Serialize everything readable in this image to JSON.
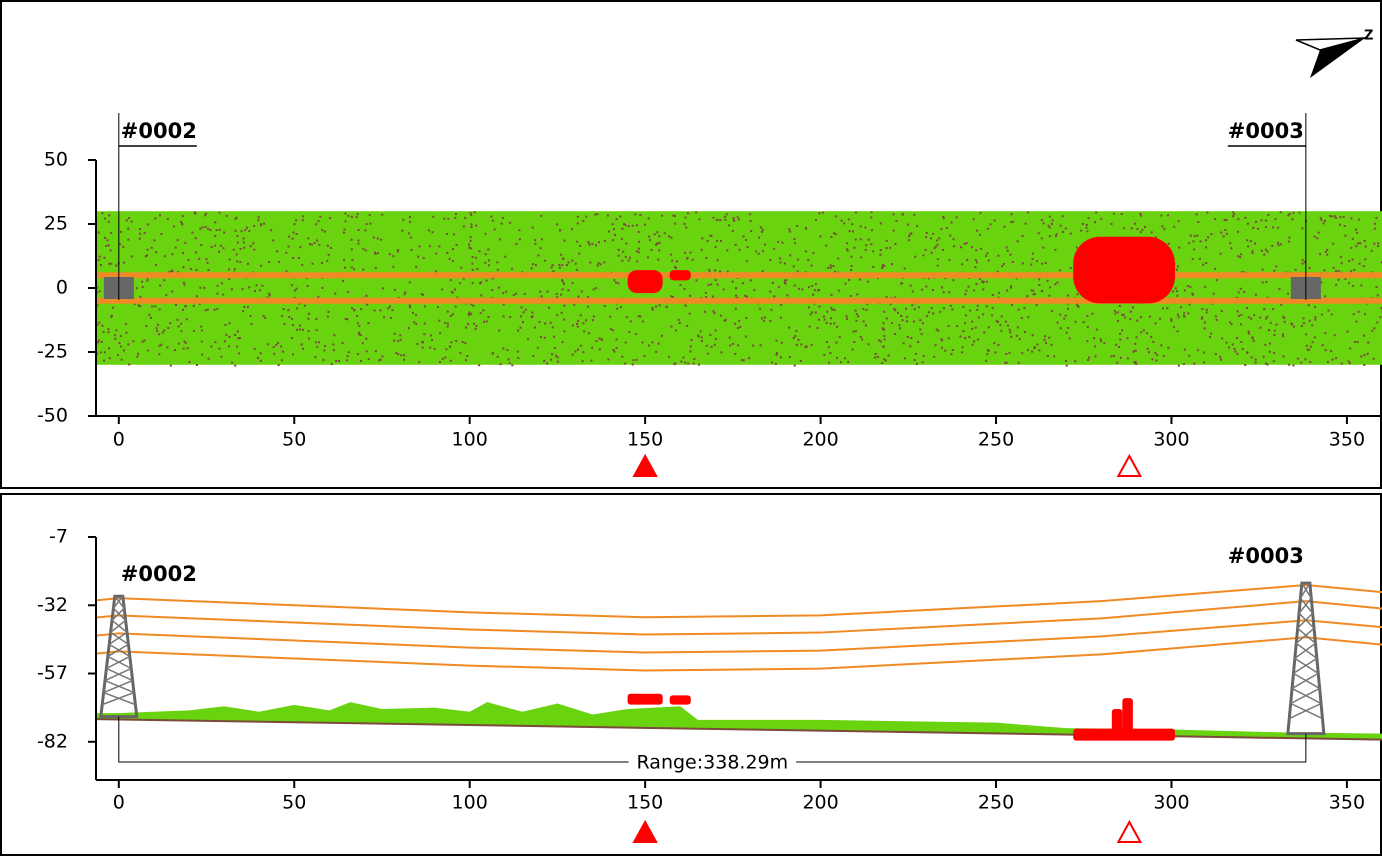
{
  "chart_data": [
    {
      "type": "plan",
      "xlim": [
        -6.5,
        360
      ],
      "xticks": [
        0,
        50,
        100,
        150,
        200,
        250,
        300,
        350
      ],
      "ylim": [
        -50,
        50
      ],
      "yticks": [
        50,
        25,
        0,
        -25,
        -50
      ],
      "corridor": [
        -30,
        30
      ],
      "corridor_color": "#6ad310",
      "conductors": [
        -5,
        5
      ],
      "conductor_color": "#f08a24",
      "hazard_color": "#ff0000",
      "hazards": [
        {
          "x": [
            145,
            155
          ],
          "y": [
            -2,
            7
          ]
        },
        {
          "x": [
            157,
            163
          ],
          "y": [
            3,
            7
          ]
        },
        {
          "x": [
            272,
            301
          ],
          "y": [
            -6,
            20
          ]
        }
      ],
      "towers": [
        {
          "label": "#0002",
          "x": 0
        },
        {
          "label": "#0003",
          "x": 338.3
        }
      ],
      "markers": [
        {
          "x": 150,
          "filled": true
        },
        {
          "x": 288,
          "filled": false
        }
      ]
    },
    {
      "type": "profile",
      "xlim": [
        -6.5,
        360
      ],
      "xticks": [
        0,
        50,
        100,
        150,
        200,
        250,
        300,
        350
      ],
      "ylim": [
        -96,
        -7
      ],
      "yticks": [
        -7,
        -32,
        -57,
        -82
      ],
      "x": [
        -6.5,
        0,
        100,
        150,
        200,
        280,
        338.3,
        360
      ],
      "series": [
        {
          "color": "#f08a24",
          "values": [
            -30.2,
            -29.4,
            -34.6,
            -36.4,
            -35.7,
            -30.5,
            -24.6,
            -27.2
          ]
        },
        {
          "color": "#f08a24",
          "values": [
            -36.5,
            -35.7,
            -40.9,
            -42.7,
            -42.0,
            -36.8,
            -30.5,
            -33.2
          ]
        },
        {
          "color": "#f08a24",
          "values": [
            -43.1,
            -42.3,
            -47.5,
            -49.3,
            -48.6,
            -43.4,
            -37.5,
            -40.0
          ]
        },
        {
          "color": "#f08a24",
          "values": [
            -49.7,
            -48.9,
            -54.1,
            -55.9,
            -55.2,
            -50.0,
            -43.7,
            -46.4
          ]
        }
      ],
      "ground": {
        "color": "#6ad310",
        "x": [
          -6.5,
          0,
          20,
          30,
          40,
          50,
          60,
          66,
          75,
          90,
          100,
          105,
          115,
          125,
          135,
          145,
          160,
          165,
          200,
          250,
          270,
          300,
          330,
          360
        ],
        "values": [
          -71.5,
          -71.5,
          -70.5,
          -69,
          -71,
          -68.5,
          -70.5,
          -67.5,
          -70,
          -69.5,
          -71,
          -67.5,
          -71,
          -68,
          -72,
          -70,
          -69,
          -74,
          -74,
          -75,
          -77,
          -77.5,
          -78.5,
          -79
        ]
      },
      "hazard_color": "#ff0000",
      "hazards": [
        {
          "x": [
            145,
            155
          ],
          "y": [
            -68.4,
            -64.4
          ]
        },
        {
          "x": [
            157,
            163
          ],
          "y": [
            -68.4,
            -65
          ]
        },
        {
          "x": [
            272,
            301
          ],
          "y": [
            -81.6,
            -77.2
          ]
        },
        {
          "x": [
            283,
            286
          ],
          "y": [
            -78,
            -70
          ]
        },
        {
          "x": [
            286,
            289
          ],
          "y": [
            -78,
            -66
          ]
        }
      ],
      "towers": [
        {
          "label": "#0002",
          "x": 0,
          "top": -28.7,
          "base": -72.8
        },
        {
          "label": "#0003",
          "x": 338.3,
          "top": -23.9,
          "base": -79
        }
      ],
      "range_label": "Range:338.29m",
      "markers": [
        {
          "x": 150,
          "filled": true
        },
        {
          "x": 288,
          "filled": false
        }
      ]
    }
  ]
}
